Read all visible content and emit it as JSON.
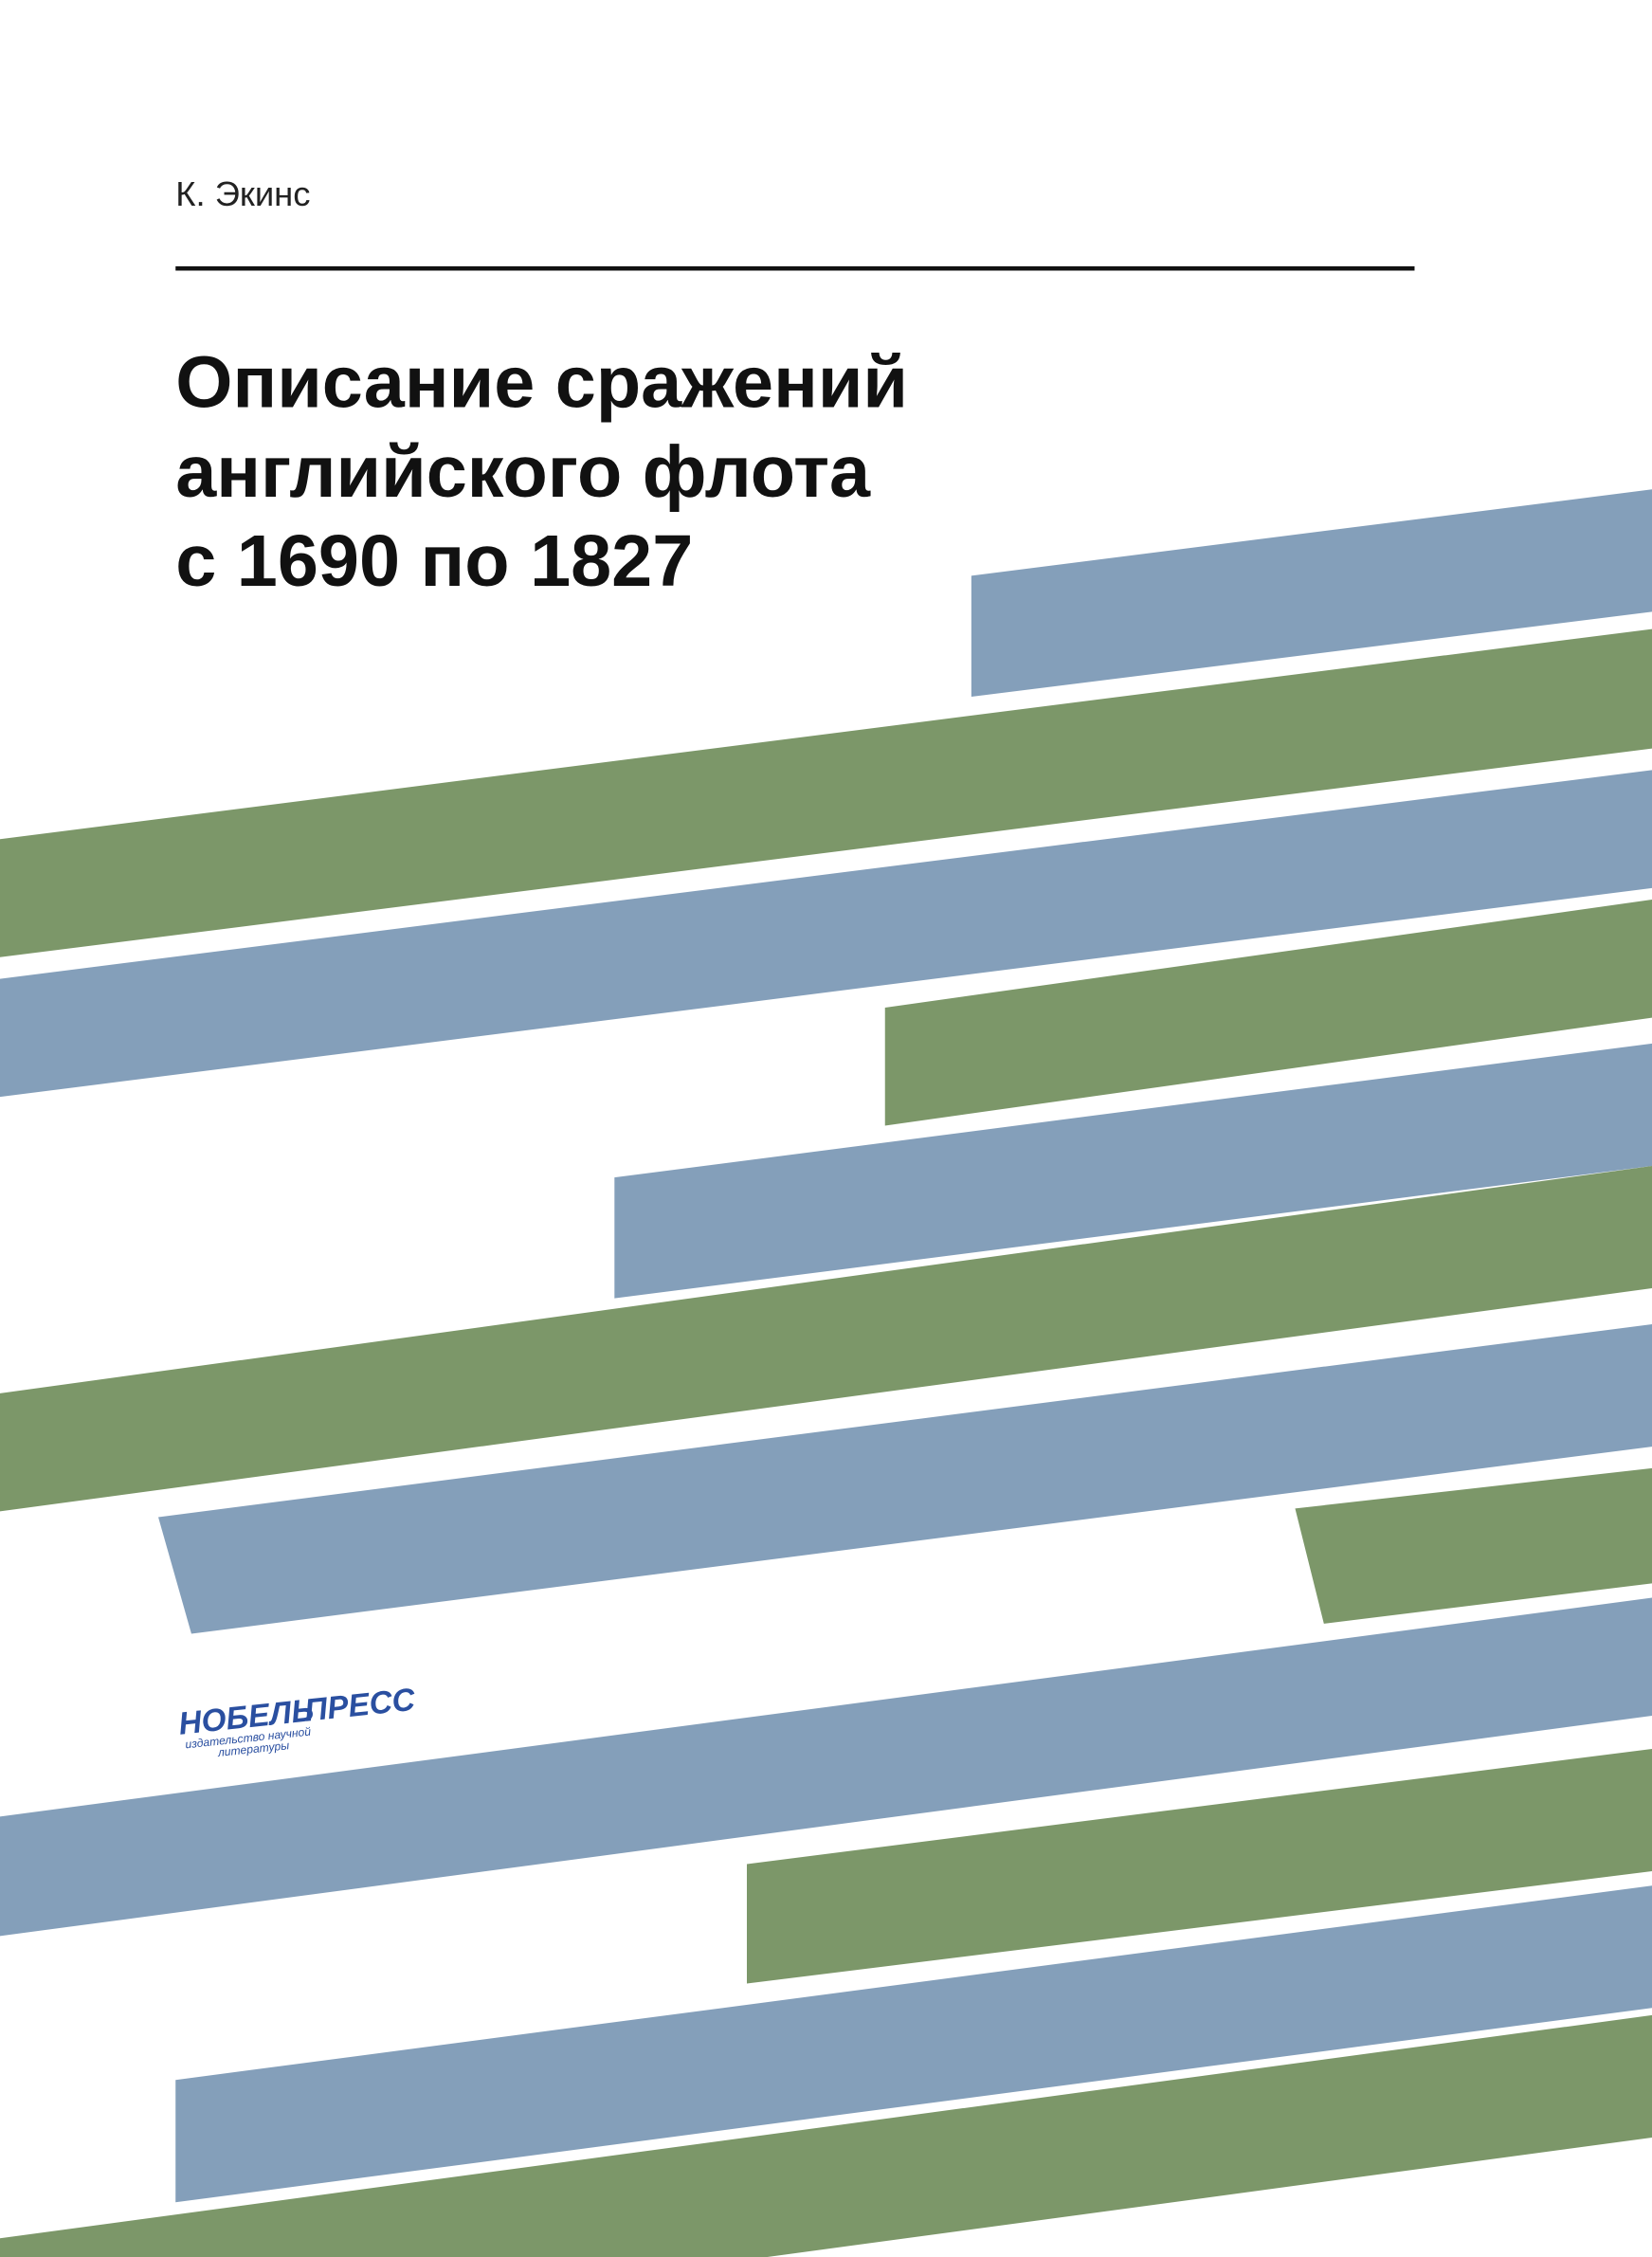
{
  "author": "К. Экинс",
  "title": [
    "Описание сражений",
    "английского флота",
    "с 1690 по 1827"
  ],
  "publisher": {
    "name_left": "НОБЕЛЬ",
    "name_right": "ПРЕСС",
    "tagline": [
      "издательство научной",
      "литературы"
    ]
  }
}
